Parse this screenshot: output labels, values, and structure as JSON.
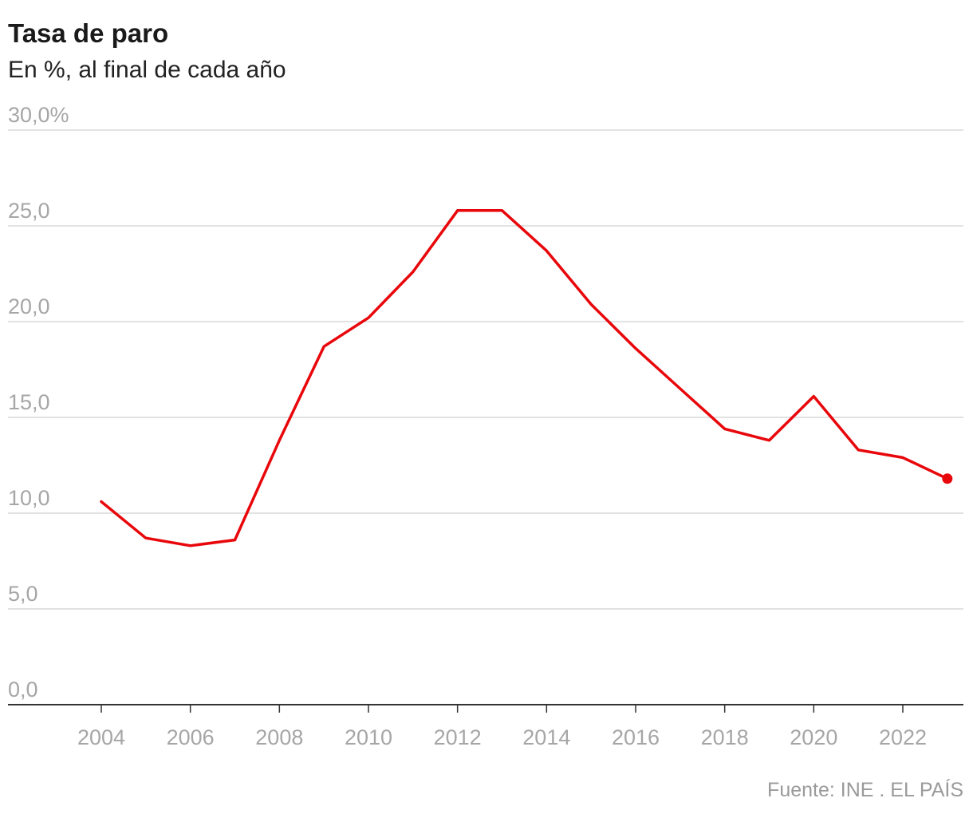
{
  "title": "Tasa de paro",
  "subtitle": "En %, al final de cada año",
  "source": "Fuente: INE . EL PAÍS",
  "colors": {
    "line": "#e8070b",
    "grid": "#d9d9d9",
    "axis": "#333333",
    "tick_text": "#a6a6a6"
  },
  "chart_data": {
    "type": "line",
    "title": "Tasa de paro",
    "subtitle": "En %, al final de cada año",
    "xlabel": "",
    "ylabel": "",
    "x": [
      2004,
      2005,
      2006,
      2007,
      2008,
      2009,
      2010,
      2011,
      2012,
      2013,
      2014,
      2015,
      2016,
      2017,
      2018,
      2019,
      2020,
      2021,
      2022,
      2023
    ],
    "series": [
      {
        "values": [
          10.6,
          8.7,
          8.3,
          8.6,
          13.8,
          18.7,
          20.2,
          22.6,
          25.8,
          25.8,
          23.7,
          20.9,
          18.6,
          16.5,
          14.4,
          13.8,
          16.1,
          13.3,
          12.9,
          11.8
        ]
      }
    ],
    "xlim": [
      2003,
      2023.5
    ],
    "ylim": [
      0,
      30
    ],
    "x_ticks": [
      2004,
      2006,
      2008,
      2010,
      2012,
      2014,
      2016,
      2018,
      2020,
      2022
    ],
    "x_tick_labels": [
      "2004",
      "2006",
      "2008",
      "2010",
      "2012",
      "2014",
      "2016",
      "2018",
      "2020",
      "2022"
    ],
    "y_ticks": [
      0,
      5,
      10,
      15,
      20,
      25,
      30
    ],
    "y_tick_labels": [
      "0,0",
      "5,0",
      "10,0",
      "15,0",
      "20,0",
      "25,0",
      "30,0%"
    ],
    "grid": true,
    "end_marker": true
  }
}
